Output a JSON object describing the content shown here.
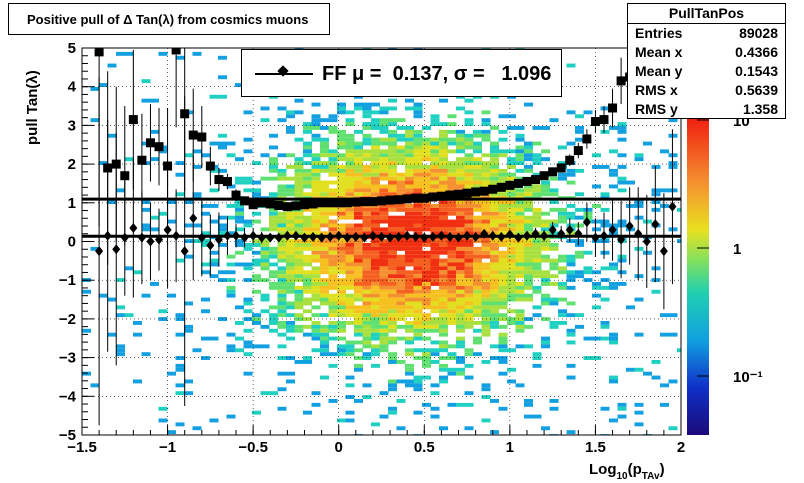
{
  "title": "Positive pull of Δ Tan(λ) from cosmics muons",
  "stats": {
    "name": "PullTanPos",
    "rows": [
      {
        "label": "Entries",
        "value": "89028"
      },
      {
        "label": "Mean x",
        "value": "0.4366"
      },
      {
        "label": "Mean y",
        "value": "0.1543"
      },
      {
        "label": "RMS x",
        "value": "0.5639"
      },
      {
        "label": "RMS y",
        "value": "1.358"
      }
    ]
  },
  "legend": {
    "text": "FF μ =  0.137, σ =   1.096"
  },
  "chart_data": {
    "type": "heatmap",
    "title": "Positive pull of Δ Tan(λ) from cosmics muons",
    "xlabel": "Log10(pTAv)",
    "ylabel": "pull Tan(λ)",
    "xlim": [
      -1.5,
      2
    ],
    "ylim": [
      -5,
      5
    ],
    "x_ticks": [
      "−1.5",
      "−1",
      "−0.5",
      "0",
      "0.5",
      "1",
      "1.5",
      "2"
    ],
    "y_ticks": [
      "5",
      "4",
      "3",
      "2",
      "1",
      "0",
      "−1",
      "−2",
      "−3",
      "−4",
      "−5"
    ],
    "z_scale": "log",
    "z_ticks": [
      "10",
      "1",
      "10⁻¹"
    ],
    "grid": true,
    "fit_lines": {
      "mean": 0.137,
      "sigma": 1.096
    },
    "series": [
      {
        "name": "mean",
        "marker": "diamond",
        "x": [
          -1.4,
          -1.35,
          -1.3,
          -1.25,
          -1.2,
          -1.15,
          -1.1,
          -1.05,
          -1.0,
          -0.95,
          -0.9,
          -0.85,
          -0.8,
          -0.75,
          -0.7,
          -0.65,
          -0.6,
          -0.55,
          -0.5,
          -0.45,
          -0.4,
          -0.35,
          -0.3,
          -0.25,
          -0.2,
          -0.15,
          -0.1,
          -0.05,
          0.0,
          0.05,
          0.1,
          0.15,
          0.2,
          0.25,
          0.3,
          0.35,
          0.4,
          0.45,
          0.5,
          0.55,
          0.6,
          0.65,
          0.7,
          0.75,
          0.8,
          0.85,
          0.9,
          0.95,
          1.0,
          1.05,
          1.1,
          1.15,
          1.2,
          1.25,
          1.3,
          1.35,
          1.4,
          1.45,
          1.5,
          1.55,
          1.6,
          1.65,
          1.7,
          1.75,
          1.8,
          1.85,
          1.9,
          1.95
        ],
        "y": [
          -0.25,
          0.15,
          -0.2,
          0.1,
          0.35,
          0.1,
          0.0,
          0.05,
          0.3,
          0.15,
          -0.25,
          0.6,
          0.1,
          -0.1,
          0.05,
          0.15,
          0.15,
          0.1,
          0.15,
          0.1,
          0.1,
          0.1,
          0.15,
          0.15,
          0.1,
          0.12,
          0.1,
          0.12,
          0.15,
          0.1,
          0.12,
          0.1,
          0.15,
          0.12,
          0.1,
          0.12,
          0.15,
          0.12,
          0.1,
          0.12,
          0.15,
          0.12,
          0.1,
          0.15,
          0.12,
          0.2,
          0.15,
          0.12,
          0.18,
          0.1,
          0.15,
          0.2,
          0.15,
          0.3,
          0.2,
          0.3,
          0.2,
          0.5,
          0.1,
          0.15,
          0.3,
          0.05,
          0.4,
          0.2,
          0.0,
          0.45,
          -0.25,
          0.9
        ],
        "err": [
          4.5,
          3.0,
          3.0,
          1.5,
          1.8,
          1.2,
          1.0,
          0.8,
          1.5,
          1.2,
          4.0,
          1.6,
          1.0,
          0.8,
          0.7,
          0.5,
          0.3,
          0.25,
          0.2,
          0.15,
          0.1,
          0.1,
          0.08,
          0.08,
          0.06,
          0.06,
          0.05,
          0.05,
          0.05,
          0.05,
          0.05,
          0.05,
          0.05,
          0.05,
          0.05,
          0.05,
          0.05,
          0.05,
          0.05,
          0.05,
          0.06,
          0.06,
          0.06,
          0.07,
          0.08,
          0.08,
          0.1,
          0.1,
          0.1,
          0.12,
          0.12,
          0.15,
          0.15,
          0.2,
          0.2,
          0.3,
          0.3,
          0.5,
          0.5,
          0.6,
          0.8,
          1.0,
          1.0,
          1.2,
          1.2,
          1.5,
          1.5,
          2.0
        ]
      },
      {
        "name": "sigma",
        "marker": "square",
        "x": [
          -1.4,
          -1.35,
          -1.3,
          -1.25,
          -1.2,
          -1.15,
          -1.1,
          -1.05,
          -1.0,
          -0.95,
          -0.9,
          -0.85,
          -0.8,
          -0.75,
          -0.7,
          -0.65,
          -0.6,
          -0.55,
          -0.5,
          -0.45,
          -0.4,
          -0.35,
          -0.3,
          -0.25,
          -0.2,
          -0.15,
          -0.1,
          -0.05,
          0.0,
          0.05,
          0.1,
          0.15,
          0.2,
          0.25,
          0.3,
          0.35,
          0.4,
          0.45,
          0.5,
          0.55,
          0.6,
          0.65,
          0.7,
          0.75,
          0.8,
          0.85,
          0.9,
          0.95,
          1.0,
          1.05,
          1.1,
          1.15,
          1.2,
          1.25,
          1.3,
          1.35,
          1.4,
          1.45,
          1.5,
          1.55,
          1.6,
          1.65,
          1.7,
          1.75,
          1.8,
          1.85,
          1.9,
          1.95
        ],
        "y": [
          4.9,
          1.9,
          2.0,
          1.7,
          3.15,
          2.1,
          2.55,
          2.45,
          1.95,
          4.95,
          3.3,
          2.75,
          2.7,
          1.95,
          1.6,
          1.55,
          1.2,
          1.05,
          0.95,
          1.0,
          0.97,
          0.93,
          0.9,
          0.92,
          0.95,
          0.97,
          1.0,
          1.0,
          1.0,
          1.0,
          1.02,
          1.03,
          1.03,
          1.05,
          1.07,
          1.08,
          1.1,
          1.12,
          1.12,
          1.15,
          1.17,
          1.2,
          1.22,
          1.25,
          1.28,
          1.3,
          1.35,
          1.4,
          1.45,
          1.5,
          1.55,
          1.6,
          1.7,
          1.8,
          1.9,
          2.1,
          2.35,
          2.65,
          3.1,
          3.15,
          3.45,
          4.15,
          4.25,
          4.95,
          4.85,
          null,
          null,
          null
        ],
        "err": [
          4.5,
          2.5,
          2.0,
          1.8,
          1.8,
          1.2,
          1.0,
          1.0,
          1.5,
          2.0,
          2.0,
          1.2,
          0.8,
          0.5,
          0.3,
          0.2,
          0.15,
          0.1,
          0.08,
          0.06,
          0.05,
          0.05,
          0.04,
          0.04,
          0.04,
          0.04,
          0.04,
          0.04,
          0.04,
          0.04,
          0.04,
          0.04,
          0.04,
          0.04,
          0.04,
          0.04,
          0.04,
          0.04,
          0.04,
          0.04,
          0.04,
          0.04,
          0.05,
          0.05,
          0.05,
          0.05,
          0.05,
          0.06,
          0.06,
          0.07,
          0.08,
          0.08,
          0.1,
          0.1,
          0.12,
          0.15,
          0.2,
          0.25,
          0.3,
          0.35,
          0.5,
          0.6,
          0.8,
          1.0,
          1.0,
          0,
          0,
          0
        ]
      }
    ]
  }
}
